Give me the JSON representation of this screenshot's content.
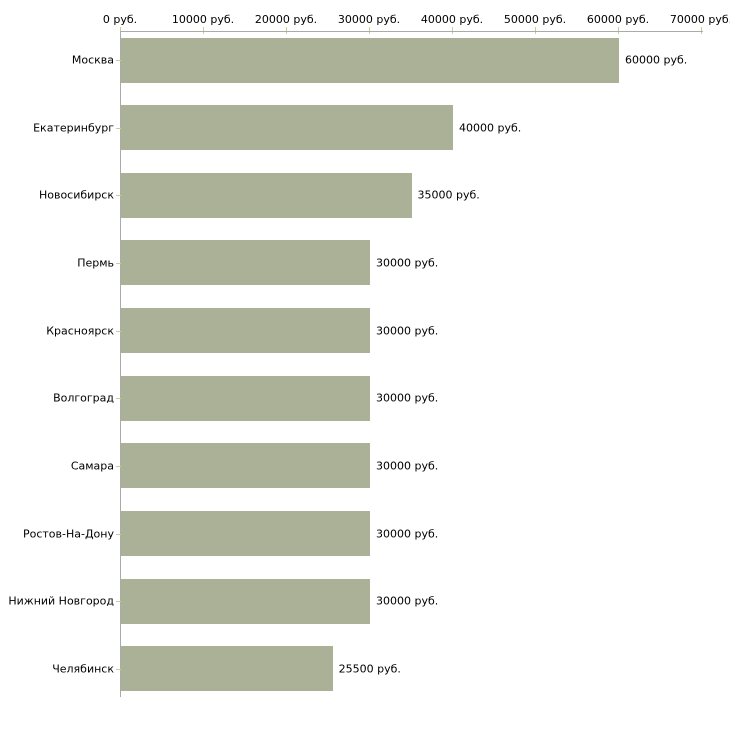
{
  "chart_data": {
    "type": "bar",
    "orientation": "horizontal",
    "categories": [
      "Москва",
      "Екатеринбург",
      "Новосибирск",
      "Пермь",
      "Красноярск",
      "Волгоград",
      "Самара",
      "Ростов-На-Дону",
      "Нижний Новгород",
      "Челябинск"
    ],
    "values": [
      60000,
      40000,
      35000,
      30000,
      30000,
      30000,
      30000,
      30000,
      30000,
      25500
    ],
    "value_labels": [
      "60000 руб.",
      "40000 руб.",
      "35000 руб.",
      "30000 руб.",
      "30000 руб.",
      "30000 руб.",
      "30000 руб.",
      "30000 руб.",
      "30000 руб.",
      "25500 руб."
    ],
    "x_tick_values": [
      0,
      10000,
      20000,
      30000,
      40000,
      50000,
      60000,
      70000
    ],
    "x_tick_labels": [
      "0 руб.",
      "10000 руб.",
      "20000 руб.",
      "30000 руб.",
      "40000 руб.",
      "50000 руб.",
      "60000 руб.",
      "70000 руб."
    ],
    "xlim": [
      0,
      70000
    ],
    "unit": "руб.",
    "grid": false,
    "legend": false,
    "colors": {
      "bar": "#ABB196",
      "axis_line": "#AAAAAA",
      "tick_mark": "#CCCC99",
      "text": "#000000",
      "background": "#FFFFFF"
    }
  }
}
